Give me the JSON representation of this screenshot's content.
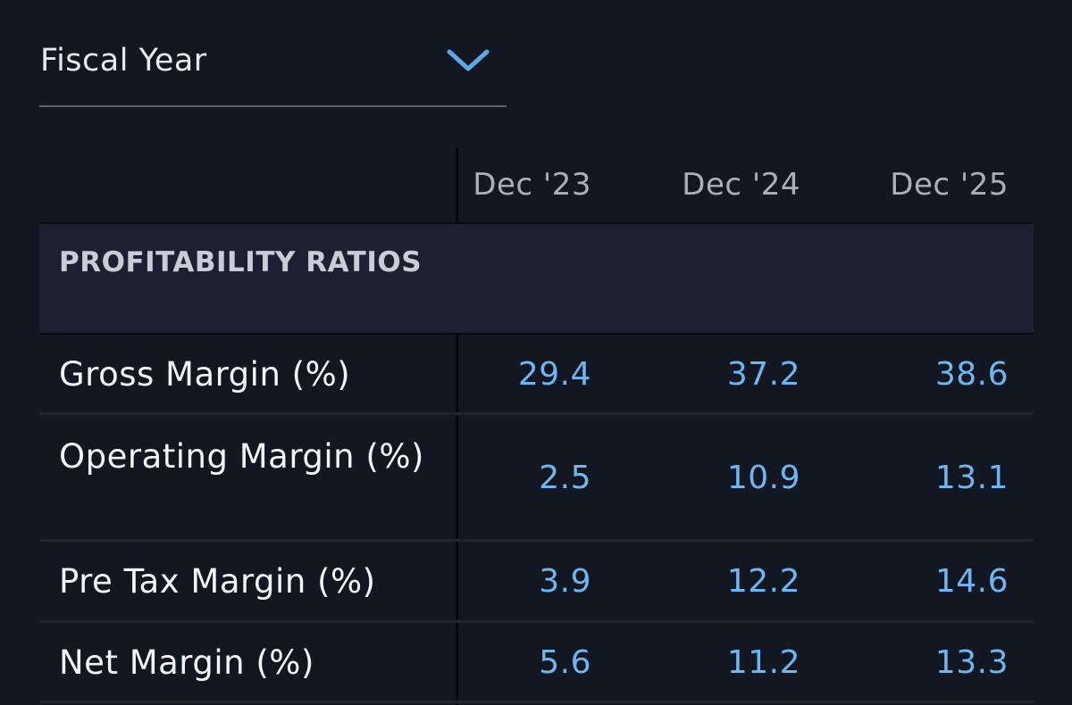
{
  "period_selector": {
    "label": "Fiscal Year"
  },
  "table": {
    "columns": [
      "Dec '23",
      "Dec '24",
      "Dec '25"
    ],
    "section": {
      "title": "PROFITABILITY RATIOS"
    },
    "rows": [
      {
        "label": "Gross Margin (%)",
        "values": [
          "29.4",
          "37.2",
          "38.6"
        ]
      },
      {
        "label": "Operating Margin (%)",
        "values": [
          "2.5",
          "10.9",
          "13.1"
        ]
      },
      {
        "label": "Pre Tax Margin (%)",
        "values": [
          "3.9",
          "12.2",
          "14.6"
        ]
      },
      {
        "label": "Net Margin (%)",
        "values": [
          "5.6",
          "11.2",
          "13.3"
        ]
      }
    ]
  },
  "colors": {
    "background": "#121722",
    "section_background": "#1b2130",
    "value_text": "#6cb7f2",
    "accent": "#5aa8e6"
  },
  "icons": {
    "dropdown": "chevron-down-icon"
  }
}
